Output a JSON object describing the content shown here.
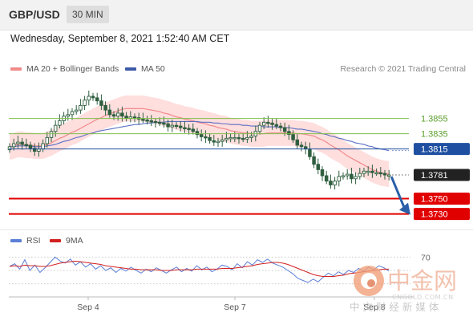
{
  "header": {
    "pair": "GBP/USD",
    "timeframe": "30 MIN",
    "datetime": "Wednesday, September 8, 2021 1:52:40 AM CET"
  },
  "legend": {
    "ma20": "MA 20 + Bollinger Bands",
    "ma50": "MA 50",
    "credit": "Research © 2021 Trading Central",
    "rsi": "RSI",
    "ma9": "9MA"
  },
  "colors": {
    "candle": "#2f5f3f",
    "band_fill": "#ffd3d3",
    "ma20": "#f08a8a",
    "ma50": "#5b6fc4",
    "support": "#e10000",
    "resistance_green": "#7fbf4a",
    "pivot": "#1f4fa0",
    "last": "#222222",
    "rsi_line": "#5b7fd6",
    "rsi_ma": "#d22020"
  },
  "watermark": {
    "cn_title": "中金网",
    "url": "CNGOLD.COM.CN",
    "cn_sub": "中 文 财 经 新 媒 体"
  },
  "chart_data": [
    {
      "type": "candlestick",
      "title": "GBP/USD",
      "timeframe": "30 MIN",
      "x_tick_labels": [
        "Sep 4",
        "Sep 7",
        "Sep 8"
      ],
      "levels": [
        {
          "label": "1.3855",
          "value": 1.3855,
          "role": "resistance"
        },
        {
          "label": "1.3835",
          "value": 1.3835,
          "role": "resistance"
        },
        {
          "label": "1.3815",
          "value": 1.3815,
          "role": "pivot"
        },
        {
          "label": "1.3781",
          "value": 1.3781,
          "role": "last"
        },
        {
          "label": "1.3750",
          "value": 1.375,
          "role": "support"
        },
        {
          "label": "1.3730",
          "value": 1.373,
          "role": "support"
        }
      ],
      "ylim": [
        1.3718,
        1.3905
      ],
      "close": [
        1.3818,
        1.3822,
        1.3824,
        1.3821,
        1.382,
        1.3816,
        1.3812,
        1.3815,
        1.3822,
        1.383,
        1.3838,
        1.3846,
        1.3852,
        1.3858,
        1.386,
        1.3864,
        1.3866,
        1.3872,
        1.3879,
        1.3884,
        1.3882,
        1.3878,
        1.3872,
        1.3866,
        1.386,
        1.3858,
        1.3862,
        1.3858,
        1.3855,
        1.3857,
        1.3856,
        1.3854,
        1.3853,
        1.3852,
        1.3851,
        1.385,
        1.3849,
        1.3848,
        1.3844,
        1.3846,
        1.3845,
        1.3843,
        1.3842,
        1.3841,
        1.3838,
        1.3834,
        1.3831,
        1.383,
        1.3826,
        1.3824,
        1.3825,
        1.3827,
        1.3829,
        1.383,
        1.383,
        1.3829,
        1.3828,
        1.383,
        1.3832,
        1.3838,
        1.3846,
        1.385,
        1.3849,
        1.3847,
        1.3845,
        1.3843,
        1.3838,
        1.3834,
        1.3827,
        1.382,
        1.3818,
        1.3815,
        1.3805,
        1.3795,
        1.3788,
        1.378,
        1.3773,
        1.3768,
        1.3773,
        1.3779,
        1.378,
        1.3782,
        1.3776,
        1.3779,
        1.3783,
        1.3786,
        1.3786,
        1.3784,
        1.3784,
        1.3783,
        1.3781,
        1.3781
      ],
      "ma20": [
        1.3818,
        1.3819,
        1.3821,
        1.3821,
        1.382,
        1.382,
        1.3819,
        1.3819,
        1.3819,
        1.3821,
        1.3823,
        1.3826,
        1.3829,
        1.3831,
        1.3834,
        1.3837,
        1.3839,
        1.3842,
        1.3845,
        1.3848,
        1.3851,
        1.3854,
        1.3856,
        1.3859,
        1.3861,
        1.3863,
        1.3865,
        1.3867,
        1.3868,
        1.3868,
        1.3868,
        1.3868,
        1.3868,
        1.3867,
        1.3866,
        1.3865,
        1.3864,
        1.3862,
        1.3861,
        1.3859,
        1.3857,
        1.3856,
        1.3854,
        1.3853,
        1.3852,
        1.385,
        1.3849,
        1.3848,
        1.3846,
        1.3845,
        1.3843,
        1.3842,
        1.3841,
        1.3839,
        1.3838,
        1.3837,
        1.3836,
        1.3836,
        1.3835,
        1.3835,
        1.3835,
        1.3835,
        1.3836,
        1.3836,
        1.3836,
        1.3836,
        1.3836,
        1.3836,
        1.3836,
        1.3835,
        1.3835,
        1.3834,
        1.3833,
        1.3832,
        1.3829,
        1.3827,
        1.3824,
        1.382,
        1.3817,
        1.3814,
        1.381,
        1.3806,
        1.3803,
        1.38,
        1.3797,
        1.3794,
        1.3791,
        1.3788,
        1.3786,
        1.3784,
        1.3783,
        1.3782
      ],
      "ma50": [
        1.3818,
        1.3818,
        1.3819,
        1.3819,
        1.3819,
        1.3819,
        1.3818,
        1.3818,
        1.3818,
        1.3819,
        1.382,
        1.3821,
        1.3823,
        1.3825,
        1.3826,
        1.3828,
        1.383,
        1.3831,
        1.3833,
        1.3835,
        1.3836,
        1.3838,
        1.3839,
        1.384,
        1.3841,
        1.3842,
        1.3843,
        1.3844,
        1.3845,
        1.3846,
        1.3847,
        1.3847,
        1.3848,
        1.3849,
        1.3849,
        1.385,
        1.385,
        1.385,
        1.3851,
        1.3851,
        1.3851,
        1.3851,
        1.3851,
        1.3851,
        1.3851,
        1.3851,
        1.385,
        1.385,
        1.385,
        1.3849,
        1.3849,
        1.3848,
        1.3848,
        1.3847,
        1.3847,
        1.3847,
        1.3846,
        1.3846,
        1.3845,
        1.3845,
        1.3845,
        1.3844,
        1.3844,
        1.3844,
        1.3844,
        1.3843,
        1.3843,
        1.3843,
        1.3842,
        1.3841,
        1.3841,
        1.384,
        1.3839,
        1.3838,
        1.3837,
        1.3835,
        1.3834,
        1.3832,
        1.3831,
        1.3829,
        1.3828,
        1.3826,
        1.3825,
        1.3823,
        1.3822,
        1.3821,
        1.3819,
        1.3818,
        1.3816,
        1.3815,
        1.3814,
        1.3813
      ]
    },
    {
      "type": "line",
      "title": "RSI",
      "x_tick_labels": [
        "Sep 4",
        "Sep 7",
        "Sep 8"
      ],
      "y_tick_labels": [
        "70"
      ],
      "ylim": [
        20,
        80
      ],
      "series": [
        {
          "name": "RSI",
          "values": [
            56,
            60,
            52,
            66,
            50,
            58,
            47,
            54,
            62,
            70,
            64,
            61,
            67,
            58,
            63,
            55,
            60,
            52,
            57,
            50,
            54,
            47,
            53,
            49,
            55,
            50,
            46,
            52,
            48,
            54,
            50,
            46,
            51,
            55,
            48,
            53,
            49,
            57,
            51,
            55,
            48,
            52,
            58,
            56,
            51,
            60,
            54,
            63,
            58,
            66,
            62,
            67,
            61,
            58,
            55,
            50,
            45,
            38,
            35,
            32,
            37,
            33,
            40,
            46,
            42,
            48,
            44,
            50,
            47,
            53,
            49,
            55,
            51,
            57,
            54,
            49
          ]
        },
        {
          "name": "9MA",
          "values": [
            56,
            57,
            56,
            58,
            57,
            57,
            56,
            56,
            57,
            59,
            61,
            62,
            63,
            64,
            63,
            62,
            61,
            60,
            59,
            57,
            56,
            55,
            54,
            53,
            52,
            52,
            51,
            51,
            51,
            51,
            50,
            50,
            50,
            51,
            51,
            51,
            51,
            52,
            52,
            52,
            52,
            52,
            53,
            53,
            53,
            54,
            55,
            56,
            57,
            59,
            60,
            61,
            62,
            62,
            61,
            59,
            56,
            53,
            50,
            47,
            44,
            42,
            41,
            41,
            41,
            42,
            43,
            45,
            46,
            47,
            48,
            49,
            50,
            51,
            52,
            52
          ]
        }
      ]
    }
  ]
}
